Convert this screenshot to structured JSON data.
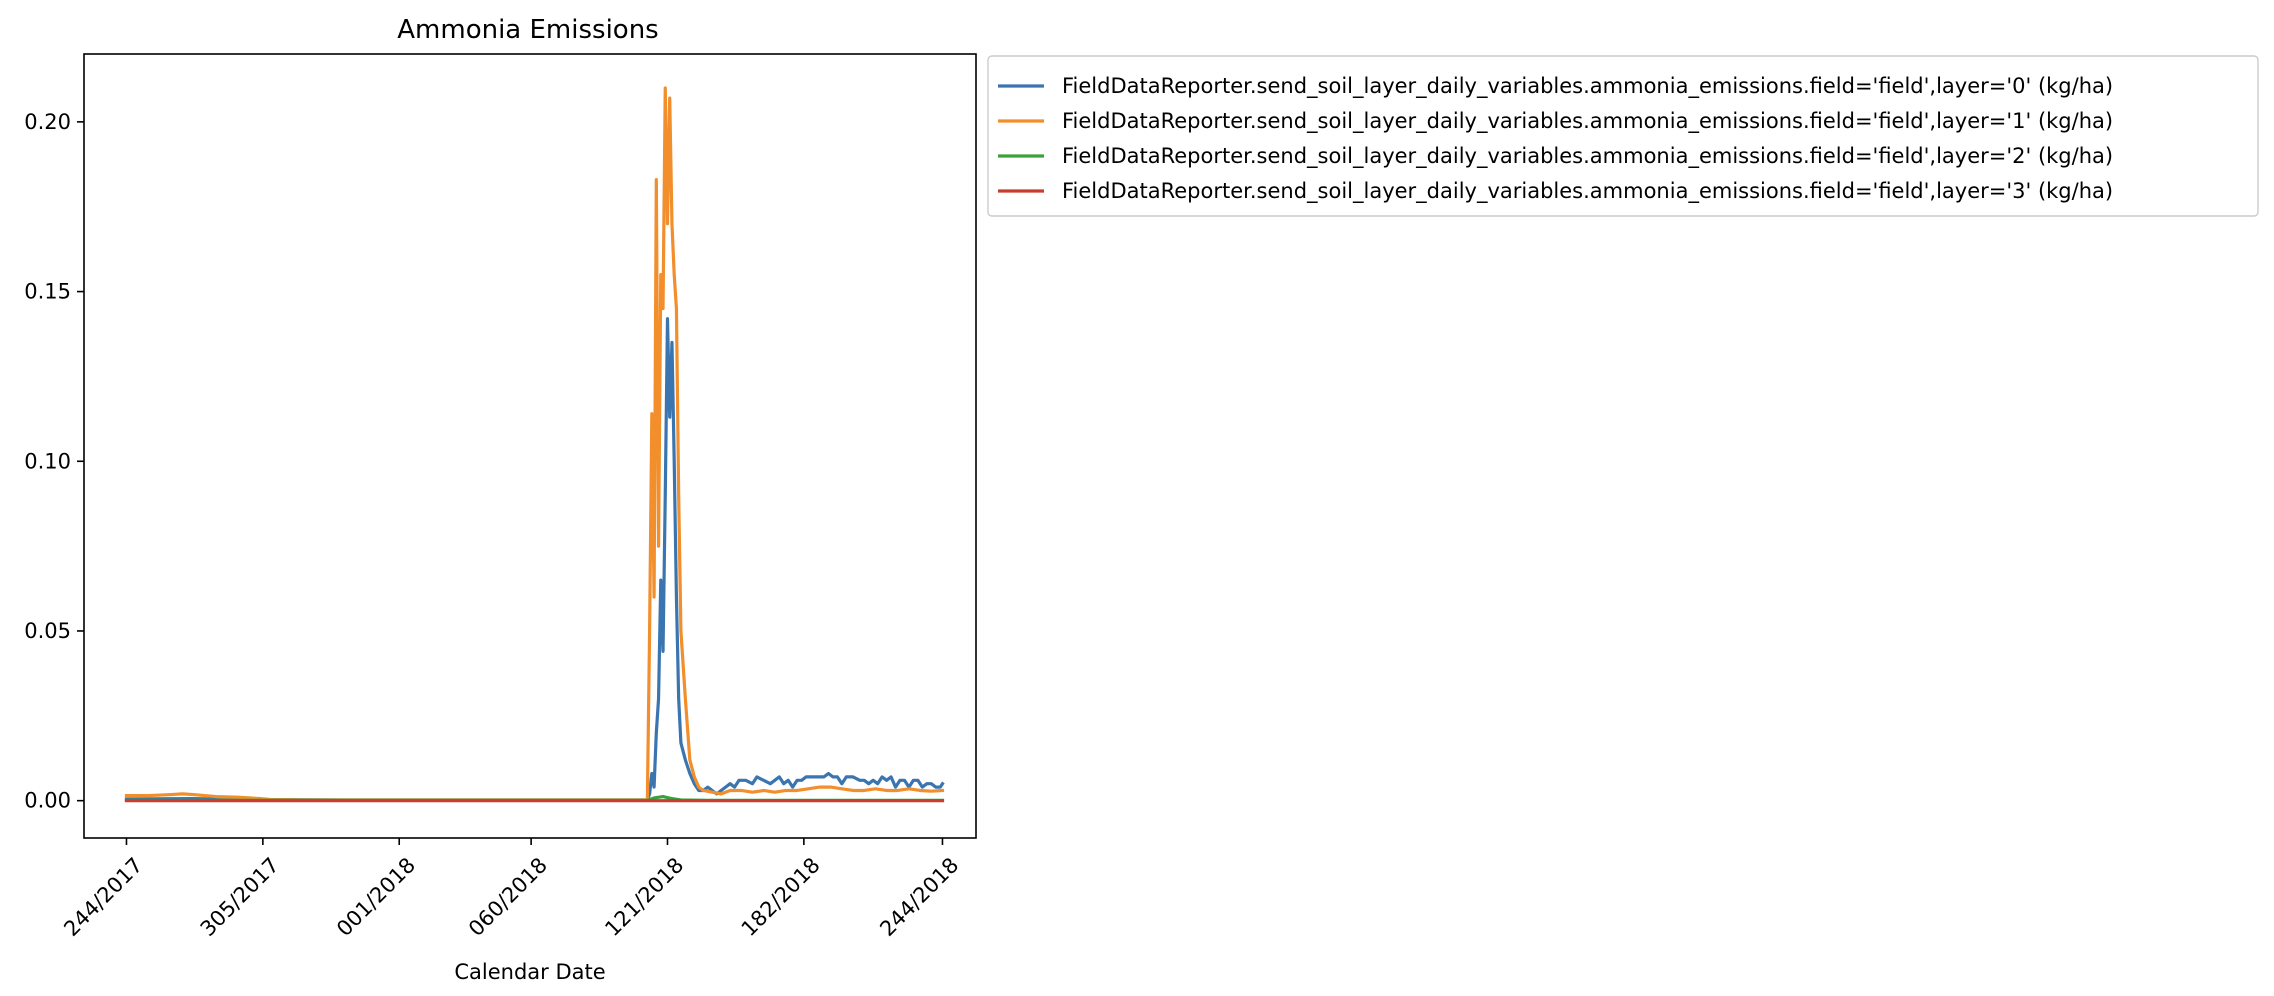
{
  "chart_data": {
    "type": "line",
    "title": "Ammonia Emissions",
    "xlabel": "Calendar Date",
    "ylabel": "",
    "x_ticks": [
      "244/2017",
      "305/2017",
      "001/2018",
      "060/2018",
      "121/2018",
      "182/2018",
      "244/2018"
    ],
    "x_tick_days": [
      0,
      61,
      122,
      181,
      242,
      303,
      365
    ],
    "xlim": [
      -19,
      380
    ],
    "ylim": [
      -0.011,
      0.22
    ],
    "y_ticks": [
      "0.00",
      "0.05",
      "0.10",
      "0.15",
      "0.20"
    ],
    "y_tick_values": [
      0.0,
      0.05,
      0.1,
      0.15,
      0.2
    ],
    "grid": false,
    "legend_location": "outside-upper-right",
    "series": [
      {
        "name": "FieldDataReporter.send_soil_layer_daily_variables.ammonia_emissions.field='field',layer='0' (kg/ha)",
        "color": "#3a75b0",
        "points": [
          [
            0,
            0.0005
          ],
          [
            30,
            0.0006
          ],
          [
            60,
            0.0003
          ],
          [
            100,
            0.0002
          ],
          [
            150,
            0.0002
          ],
          [
            233,
            0.0002
          ],
          [
            234,
            0.002
          ],
          [
            235,
            0.008
          ],
          [
            236,
            0.004
          ],
          [
            237,
            0.02
          ],
          [
            238,
            0.03
          ],
          [
            239,
            0.065
          ],
          [
            240,
            0.044
          ],
          [
            241,
            0.09
          ],
          [
            242,
            0.142
          ],
          [
            243,
            0.113
          ],
          [
            244,
            0.135
          ],
          [
            245,
            0.1
          ],
          [
            246,
            0.06
          ],
          [
            247,
            0.03
          ],
          [
            248,
            0.017
          ],
          [
            250,
            0.012
          ],
          [
            252,
            0.008
          ],
          [
            254,
            0.005
          ],
          [
            256,
            0.003
          ],
          [
            258,
            0.003
          ],
          [
            260,
            0.004
          ],
          [
            262,
            0.003
          ],
          [
            264,
            0.002
          ],
          [
            266,
            0.003
          ],
          [
            268,
            0.004
          ],
          [
            270,
            0.005
          ],
          [
            272,
            0.004
          ],
          [
            274,
            0.006
          ],
          [
            277,
            0.006
          ],
          [
            280,
            0.005
          ],
          [
            282,
            0.007
          ],
          [
            285,
            0.006
          ],
          [
            288,
            0.005
          ],
          [
            290,
            0.006
          ],
          [
            292,
            0.007
          ],
          [
            294,
            0.005
          ],
          [
            296,
            0.006
          ],
          [
            298,
            0.004
          ],
          [
            300,
            0.006
          ],
          [
            302,
            0.006
          ],
          [
            304,
            0.007
          ],
          [
            306,
            0.007
          ],
          [
            310,
            0.007
          ],
          [
            312,
            0.007
          ],
          [
            314,
            0.008
          ],
          [
            316,
            0.007
          ],
          [
            318,
            0.007
          ],
          [
            320,
            0.005
          ],
          [
            322,
            0.007
          ],
          [
            325,
            0.007
          ],
          [
            328,
            0.006
          ],
          [
            330,
            0.006
          ],
          [
            332,
            0.005
          ],
          [
            334,
            0.006
          ],
          [
            336,
            0.005
          ],
          [
            338,
            0.007
          ],
          [
            340,
            0.006
          ],
          [
            342,
            0.007
          ],
          [
            344,
            0.004
          ],
          [
            346,
            0.006
          ],
          [
            348,
            0.006
          ],
          [
            350,
            0.004
          ],
          [
            352,
            0.006
          ],
          [
            354,
            0.006
          ],
          [
            356,
            0.004
          ],
          [
            358,
            0.005
          ],
          [
            360,
            0.005
          ],
          [
            362,
            0.004
          ],
          [
            364,
            0.004
          ],
          [
            365,
            0.005
          ]
        ]
      },
      {
        "name": "FieldDataReporter.send_soil_layer_daily_variables.ammonia_emissions.field='field',layer='1' (kg/ha)",
        "color": "#f28e2b",
        "points": [
          [
            0,
            0.0015
          ],
          [
            10,
            0.0015
          ],
          [
            20,
            0.0018
          ],
          [
            25,
            0.002
          ],
          [
            30,
            0.0018
          ],
          [
            40,
            0.0012
          ],
          [
            50,
            0.001
          ],
          [
            60,
            0.0006
          ],
          [
            65,
            0.0003
          ],
          [
            80,
            0.0002
          ],
          [
            150,
            0.0002
          ],
          [
            233,
            0.0002
          ],
          [
            234,
            0.05
          ],
          [
            235,
            0.114
          ],
          [
            236,
            0.06
          ],
          [
            237,
            0.183
          ],
          [
            238,
            0.075
          ],
          [
            239,
            0.155
          ],
          [
            240,
            0.145
          ],
          [
            241,
            0.21
          ],
          [
            242,
            0.17
          ],
          [
            243,
            0.207
          ],
          [
            244,
            0.17
          ],
          [
            245,
            0.155
          ],
          [
            246,
            0.145
          ],
          [
            247,
            0.09
          ],
          [
            248,
            0.05
          ],
          [
            250,
            0.03
          ],
          [
            252,
            0.012
          ],
          [
            254,
            0.007
          ],
          [
            256,
            0.004
          ],
          [
            258,
            0.003
          ],
          [
            262,
            0.0025
          ],
          [
            266,
            0.002
          ],
          [
            270,
            0.003
          ],
          [
            275,
            0.003
          ],
          [
            280,
            0.0025
          ],
          [
            285,
            0.003
          ],
          [
            290,
            0.0025
          ],
          [
            295,
            0.003
          ],
          [
            300,
            0.003
          ],
          [
            305,
            0.0035
          ],
          [
            310,
            0.004
          ],
          [
            315,
            0.004
          ],
          [
            320,
            0.0035
          ],
          [
            325,
            0.003
          ],
          [
            330,
            0.003
          ],
          [
            335,
            0.0035
          ],
          [
            340,
            0.003
          ],
          [
            345,
            0.003
          ],
          [
            350,
            0.0035
          ],
          [
            355,
            0.003
          ],
          [
            360,
            0.0028
          ],
          [
            365,
            0.003
          ]
        ]
      },
      {
        "name": "FieldDataReporter.send_soil_layer_daily_variables.ammonia_emissions.field='field',layer='2' (kg/ha)",
        "color": "#3aa23a",
        "points": [
          [
            0,
            0.0001
          ],
          [
            233,
            0.0001
          ],
          [
            236,
            0.0008
          ],
          [
            240,
            0.0012
          ],
          [
            244,
            0.0006
          ],
          [
            248,
            0.0002
          ],
          [
            260,
            0.0001
          ],
          [
            365,
            0.0001
          ]
        ]
      },
      {
        "name": "FieldDataReporter.send_soil_layer_daily_variables.ammonia_emissions.field='field',layer='3' (kg/ha)",
        "color": "#c83d2e",
        "points": [
          [
            0,
            0.0
          ],
          [
            365,
            0.0
          ]
        ]
      }
    ]
  }
}
